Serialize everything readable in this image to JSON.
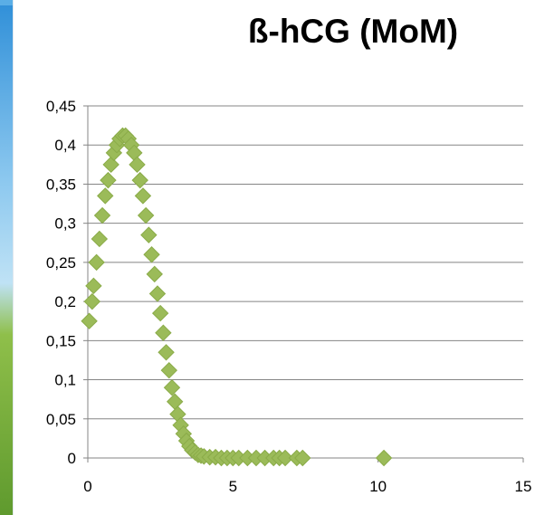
{
  "colors": {
    "marker": "#9bbb59",
    "marker_stroke": "#8aab48",
    "grid": "#858585",
    "axis": "#858585",
    "sky_top": "#2f8fd8",
    "sky_mid": "#8cc8ef",
    "grass": "#6fa53a"
  },
  "chart_data": {
    "type": "scatter",
    "title": "ß-hCG (MoM)",
    "xlabel": "",
    "ylabel": "",
    "xlim": [
      0,
      15
    ],
    "ylim": [
      0,
      0.45
    ],
    "x_ticks": [
      0,
      5,
      10,
      15
    ],
    "y_ticks": [
      0,
      0.05,
      0.1,
      0.15,
      0.2,
      0.25,
      0.3,
      0.35,
      0.4,
      0.45
    ],
    "x_tick_labels": [
      "0",
      "5",
      "10",
      "15"
    ],
    "y_tick_labels": [
      "0",
      "0,05",
      "0,1",
      "0,15",
      "0,2",
      "0,25",
      "0,3",
      "0,35",
      "0,4",
      "0,45"
    ],
    "grid": "horizontal",
    "legend": "none",
    "marker": "diamond",
    "series": [
      {
        "points": [
          [
            0.05,
            0.175
          ],
          [
            0.15,
            0.2
          ],
          [
            0.2,
            0.22
          ],
          [
            0.3,
            0.25
          ],
          [
            0.4,
            0.28
          ],
          [
            0.5,
            0.31
          ],
          [
            0.6,
            0.335
          ],
          [
            0.7,
            0.355
          ],
          [
            0.8,
            0.375
          ],
          [
            0.9,
            0.39
          ],
          [
            1.0,
            0.4
          ],
          [
            1.1,
            0.408
          ],
          [
            1.2,
            0.412
          ],
          [
            1.3,
            0.412
          ],
          [
            1.4,
            0.408
          ],
          [
            1.5,
            0.4
          ],
          [
            1.6,
            0.39
          ],
          [
            1.7,
            0.375
          ],
          [
            1.8,
            0.355
          ],
          [
            1.9,
            0.335
          ],
          [
            2.0,
            0.31
          ],
          [
            2.1,
            0.285
          ],
          [
            2.2,
            0.26
          ],
          [
            2.3,
            0.235
          ],
          [
            2.4,
            0.21
          ],
          [
            2.5,
            0.185
          ],
          [
            2.6,
            0.16
          ],
          [
            2.7,
            0.135
          ],
          [
            2.8,
            0.112
          ],
          [
            2.9,
            0.09
          ],
          [
            3.0,
            0.072
          ],
          [
            3.1,
            0.056
          ],
          [
            3.2,
            0.042
          ],
          [
            3.3,
            0.031
          ],
          [
            3.4,
            0.022
          ],
          [
            3.5,
            0.015
          ],
          [
            3.6,
            0.01
          ],
          [
            3.7,
            0.007
          ],
          [
            3.8,
            0.004
          ],
          [
            3.9,
            0.003
          ],
          [
            4.0,
            0.002
          ],
          [
            4.2,
            0.001
          ],
          [
            4.4,
            0.001
          ],
          [
            4.6,
            0.0
          ],
          [
            4.8,
            0.0
          ],
          [
            5.0,
            0.0
          ],
          [
            5.2,
            0.0
          ],
          [
            5.5,
            0.0
          ],
          [
            5.8,
            0.0
          ],
          [
            6.1,
            0.0
          ],
          [
            6.4,
            0.0
          ],
          [
            6.6,
            0.0
          ],
          [
            6.8,
            0.0
          ],
          [
            7.2,
            0.0
          ],
          [
            7.4,
            0.0
          ],
          [
            10.2,
            0.0
          ]
        ]
      }
    ]
  }
}
